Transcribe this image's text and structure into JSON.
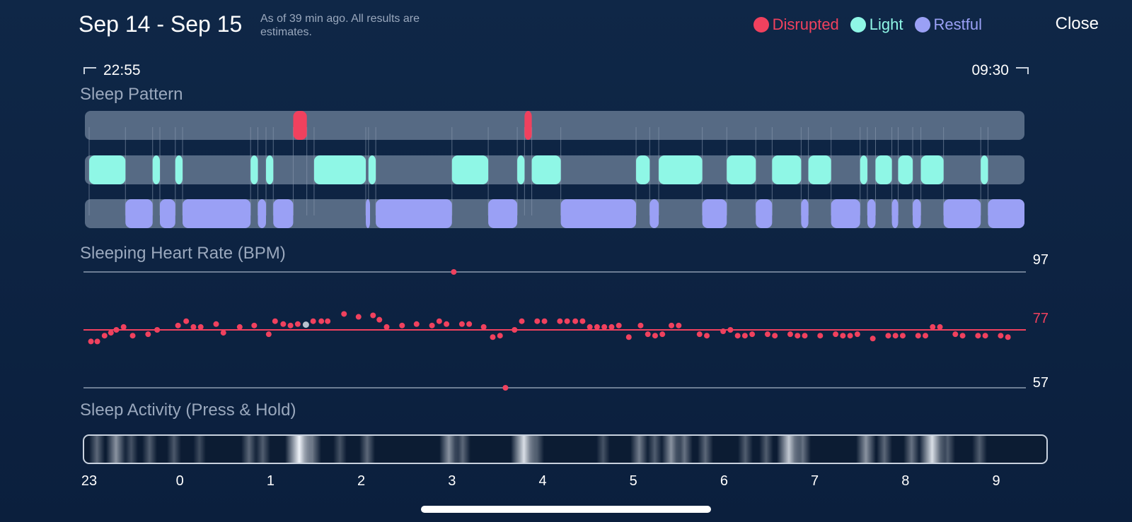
{
  "header": {
    "date_range": "Sep 14 - Sep 15",
    "subtitle": "As of 39 min ago. All results are estimates.",
    "close_label": "Close"
  },
  "legend": [
    {
      "label": "Disrupted",
      "color": "#f0415e"
    },
    {
      "label": "Light",
      "color": "#8ff7e6"
    },
    {
      "label": "Restful",
      "color": "#9aa0f5"
    }
  ],
  "time_range": {
    "start": "22:55",
    "end": "09:30"
  },
  "sleep_pattern": {
    "title": "Sleep Pattern",
    "disrupted": [
      [
        1.25,
        1.4
      ],
      [
        3.8,
        3.88
      ]
    ],
    "light": [
      [
        -1.0,
        -0.6
      ],
      [
        -0.3,
        -0.22
      ],
      [
        -0.05,
        0.03
      ],
      [
        0.78,
        0.86
      ],
      [
        0.95,
        1.03
      ],
      [
        1.48,
        2.05
      ],
      [
        2.08,
        2.16
      ],
      [
        3.0,
        3.4
      ],
      [
        3.72,
        3.8
      ],
      [
        3.88,
        4.2
      ],
      [
        5.03,
        5.18
      ],
      [
        5.28,
        5.76
      ],
      [
        6.03,
        6.35
      ],
      [
        6.53,
        6.85
      ],
      [
        6.93,
        7.18
      ],
      [
        7.5,
        7.58
      ],
      [
        7.67,
        7.85
      ],
      [
        7.92,
        8.08
      ],
      [
        8.17,
        8.42
      ],
      [
        8.83,
        8.91
      ]
    ],
    "restful": [
      [
        -0.6,
        -0.3
      ],
      [
        -0.22,
        -0.05
      ],
      [
        0.03,
        0.78
      ],
      [
        0.86,
        0.95
      ],
      [
        1.03,
        1.25
      ],
      [
        2.05,
        2.08
      ],
      [
        2.16,
        3.0
      ],
      [
        3.4,
        3.72
      ],
      [
        4.2,
        5.03
      ],
      [
        5.18,
        5.28
      ],
      [
        5.76,
        6.03
      ],
      [
        6.35,
        6.53
      ],
      [
        6.85,
        6.93
      ],
      [
        7.18,
        7.5
      ],
      [
        7.58,
        7.67
      ],
      [
        7.85,
        7.92
      ],
      [
        8.08,
        8.17
      ],
      [
        8.42,
        8.83
      ],
      [
        8.91,
        9.5
      ]
    ]
  },
  "heart_rate": {
    "title": "Sleeping Heart Rate (BPM)",
    "max_label": "97",
    "avg_label": "77",
    "min_label": "57",
    "max": 97,
    "avg": 77,
    "min": 57,
    "line_color": "#f0415e",
    "points": [
      [
        -0.98,
        73
      ],
      [
        -0.91,
        73
      ],
      [
        -0.83,
        75
      ],
      [
        -0.76,
        76
      ],
      [
        -0.7,
        77
      ],
      [
        -0.62,
        78
      ],
      [
        -0.52,
        75
      ],
      [
        -0.35,
        75.5
      ],
      [
        -0.25,
        77
      ],
      [
        -0.02,
        78.5
      ],
      [
        0.07,
        80
      ],
      [
        0.15,
        78
      ],
      [
        0.23,
        78
      ],
      [
        0.4,
        79
      ],
      [
        0.48,
        76
      ],
      [
        0.66,
        78
      ],
      [
        0.82,
        78.5
      ],
      [
        0.98,
        75.5
      ],
      [
        1.05,
        80
      ],
      [
        1.14,
        79
      ],
      [
        1.22,
        78.5
      ],
      [
        1.3,
        79
      ],
      [
        1.47,
        80
      ],
      [
        1.56,
        80
      ],
      [
        1.63,
        80
      ],
      [
        1.81,
        82.5
      ],
      [
        1.97,
        81.5
      ],
      [
        2.13,
        82
      ],
      [
        2.2,
        80.5
      ],
      [
        2.28,
        78
      ],
      [
        2.45,
        78.5
      ],
      [
        2.61,
        79
      ],
      [
        2.78,
        78.5
      ],
      [
        2.86,
        80
      ],
      [
        2.94,
        79
      ],
      [
        3.02,
        97
      ],
      [
        3.11,
        79
      ],
      [
        3.19,
        79
      ],
      [
        3.35,
        78
      ],
      [
        3.45,
        74.5
      ],
      [
        3.53,
        75
      ],
      [
        3.59,
        57
      ],
      [
        3.69,
        77
      ],
      [
        3.77,
        80
      ],
      [
        3.94,
        80
      ],
      [
        4.02,
        80
      ],
      [
        4.19,
        80
      ],
      [
        4.27,
        80
      ],
      [
        4.36,
        80
      ],
      [
        4.44,
        80
      ],
      [
        4.52,
        78
      ],
      [
        4.6,
        78
      ],
      [
        4.68,
        78
      ],
      [
        4.76,
        78
      ],
      [
        4.84,
        78.5
      ],
      [
        4.95,
        74.5
      ],
      [
        5.08,
        78.5
      ],
      [
        5.16,
        75.5
      ],
      [
        5.24,
        75
      ],
      [
        5.32,
        75.5
      ],
      [
        5.42,
        78.5
      ],
      [
        5.5,
        78.5
      ],
      [
        5.73,
        75.5
      ],
      [
        5.81,
        75
      ],
      [
        5.99,
        76.5
      ],
      [
        6.07,
        77
      ],
      [
        6.15,
        75
      ],
      [
        6.23,
        75
      ],
      [
        6.31,
        75.5
      ],
      [
        6.48,
        75.5
      ],
      [
        6.56,
        75
      ],
      [
        6.73,
        75.5
      ],
      [
        6.81,
        75
      ],
      [
        6.89,
        75
      ],
      [
        7.06,
        75
      ],
      [
        7.23,
        75.5
      ],
      [
        7.31,
        75
      ],
      [
        7.39,
        75
      ],
      [
        7.47,
        75.5
      ],
      [
        7.64,
        74
      ],
      [
        7.81,
        75
      ],
      [
        7.89,
        75
      ],
      [
        7.97,
        75
      ],
      [
        8.14,
        75
      ],
      [
        8.22,
        75
      ],
      [
        8.3,
        78
      ],
      [
        8.38,
        78
      ],
      [
        8.55,
        75.5
      ],
      [
        8.63,
        75
      ],
      [
        8.8,
        75
      ],
      [
        8.88,
        75
      ],
      [
        9.05,
        75
      ],
      [
        9.13,
        74.5
      ]
    ],
    "highlight": [
      1.39,
      78.8
    ]
  },
  "sleep_activity": {
    "title": "Sleep Activity (Press & Hold)",
    "bands": [
      [
        -0.93,
        0.35
      ],
      [
        -0.72,
        0.55
      ],
      [
        -0.55,
        0.25
      ],
      [
        -0.35,
        0.3
      ],
      [
        -0.08,
        0.28
      ],
      [
        0.2,
        0.22
      ],
      [
        0.75,
        0.35
      ],
      [
        0.9,
        0.3
      ],
      [
        1.3,
        1.0
      ],
      [
        1.45,
        0.4
      ],
      [
        1.75,
        0.25
      ],
      [
        2.05,
        0.35
      ],
      [
        2.95,
        0.55
      ],
      [
        3.1,
        0.35
      ],
      [
        3.78,
        0.9
      ],
      [
        3.92,
        0.3
      ],
      [
        4.65,
        0.25
      ],
      [
        5.05,
        0.45
      ],
      [
        5.22,
        0.3
      ],
      [
        5.4,
        0.55
      ],
      [
        5.55,
        0.4
      ],
      [
        5.78,
        0.35
      ],
      [
        6.22,
        0.3
      ],
      [
        6.45,
        0.3
      ],
      [
        6.7,
        0.8
      ],
      [
        6.85,
        0.4
      ],
      [
        7.55,
        0.55
      ],
      [
        7.75,
        0.35
      ],
      [
        8.05,
        0.4
      ],
      [
        8.28,
        0.9
      ],
      [
        8.45,
        0.3
      ],
      [
        8.8,
        0.3
      ]
    ]
  },
  "x_axis": {
    "ticks": [
      "23",
      "0",
      "1",
      "2",
      "3",
      "4",
      "5",
      "6",
      "7",
      "8",
      "9"
    ],
    "tick_values": [
      -1,
      0,
      1,
      2,
      3,
      4,
      5,
      6,
      7,
      8,
      9
    ]
  }
}
